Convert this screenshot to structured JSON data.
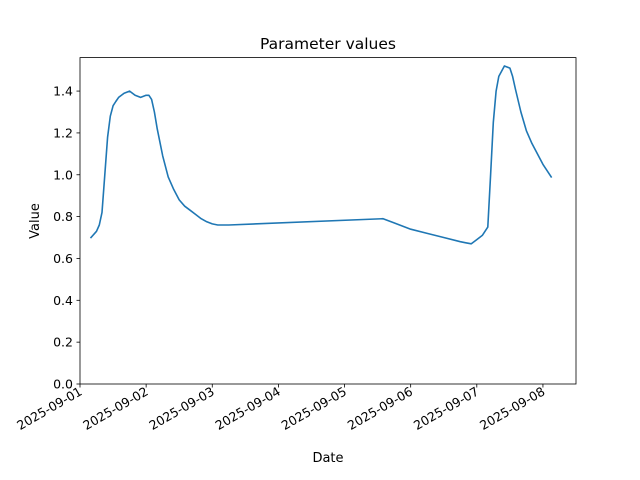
{
  "chart_data": {
    "type": "line",
    "title": "Parameter values",
    "xlabel": "Date",
    "ylabel": "Value",
    "ylim": [
      0,
      1.56
    ],
    "xlim": [
      "2025-09-01 00:00",
      "2025-09-08 12:00"
    ],
    "grid": false,
    "legend": "none",
    "color": "#1f77b4",
    "x_ticks": [
      "2025-09-01",
      "2025-09-02",
      "2025-09-03",
      "2025-09-04",
      "2025-09-05",
      "2025-09-06",
      "2025-09-07",
      "2025-09-08"
    ],
    "y_ticks": [
      "0.0",
      "0.2",
      "0.4",
      "0.6",
      "0.8",
      "1.0",
      "1.2",
      "1.4"
    ],
    "series": [
      {
        "x": [
          "2025-09-01 04:00",
          "2025-09-01 06:00",
          "2025-09-01 07:00",
          "2025-09-01 08:00",
          "2025-09-01 09:00",
          "2025-09-01 10:00",
          "2025-09-01 11:00",
          "2025-09-01 12:00",
          "2025-09-01 13:00",
          "2025-09-01 14:00",
          "2025-09-01 16:00",
          "2025-09-01 18:00",
          "2025-09-01 20:00",
          "2025-09-01 22:00",
          "2025-09-02 00:00",
          "2025-09-02 01:00",
          "2025-09-02 02:00",
          "2025-09-02 03:00",
          "2025-09-02 04:00",
          "2025-09-02 06:00",
          "2025-09-02 08:00",
          "2025-09-02 10:00",
          "2025-09-02 12:00",
          "2025-09-02 14:00",
          "2025-09-02 16:00",
          "2025-09-02 18:00",
          "2025-09-02 20:00",
          "2025-09-02 22:00",
          "2025-09-03 00:00",
          "2025-09-03 02:00",
          "2025-09-03 04:00",
          "2025-09-03 06:00",
          "2025-09-05 14:00",
          "2025-09-05 18:00",
          "2025-09-06 00:00",
          "2025-09-06 06:00",
          "2025-09-06 12:00",
          "2025-09-06 18:00",
          "2025-09-06 20:00",
          "2025-09-06 22:00",
          "2025-09-07 00:00",
          "2025-09-07 02:00",
          "2025-09-07 04:00",
          "2025-09-07 05:00",
          "2025-09-07 06:00",
          "2025-09-07 07:00",
          "2025-09-07 08:00",
          "2025-09-07 10:00",
          "2025-09-07 12:00",
          "2025-09-07 13:00",
          "2025-09-07 14:00",
          "2025-09-07 16:00",
          "2025-09-07 18:00",
          "2025-09-07 20:00",
          "2025-09-08 00:00",
          "2025-09-08 03:00"
        ],
        "y": [
          0.7,
          0.73,
          0.76,
          0.82,
          1.0,
          1.18,
          1.28,
          1.33,
          1.35,
          1.37,
          1.39,
          1.4,
          1.38,
          1.37,
          1.38,
          1.38,
          1.36,
          1.3,
          1.22,
          1.09,
          0.99,
          0.93,
          0.88,
          0.85,
          0.83,
          0.81,
          0.79,
          0.775,
          0.765,
          0.76,
          0.76,
          0.76,
          0.79,
          0.77,
          0.74,
          0.72,
          0.7,
          0.68,
          0.675,
          0.67,
          0.69,
          0.71,
          0.75,
          1.0,
          1.25,
          1.4,
          1.47,
          1.52,
          1.51,
          1.47,
          1.41,
          1.3,
          1.21,
          1.15,
          1.05,
          0.99
        ]
      }
    ]
  }
}
